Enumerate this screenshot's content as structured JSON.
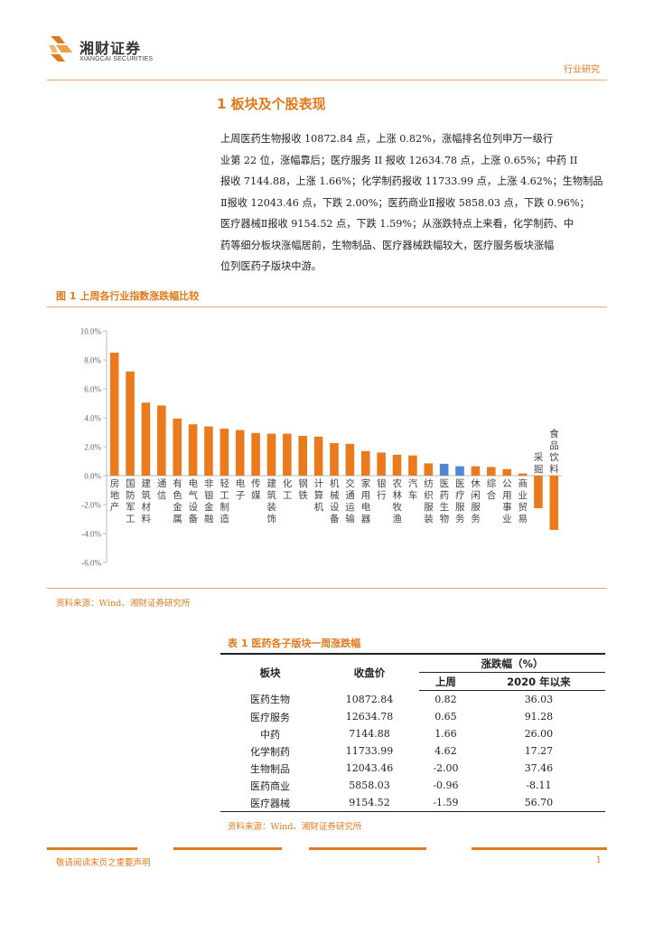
{
  "header": {
    "brand_cn": "湘财证券",
    "brand_en": "XIANGCAI SECURITIES",
    "doc_type": "行业研究",
    "accent": "#e07a1e"
  },
  "section": {
    "title": "1 板块及个股表现",
    "paragraph_lines": [
      "上周医药生物报收 10872.84 点，上涨 0.82%，涨幅排名位列申万一级行",
      "业第 22 位，涨幅靠后；医疗服务 II 报收 12634.78 点，上涨 0.65%；中药 II",
      "报收 7144.88，上涨 1.66%；化学制药报收 11733.99 点，上涨 4.62%；生物制品",
      "Ⅱ报收 12043.46 点，下跌 2.00%；医药商业Ⅱ报收 5858.03 点，下跌 0.96%；",
      "医疗器械Ⅱ报收 9154.52 点，下跌 1.59%；从涨跌特点上来看，化学制药、中",
      "药等细分板块涨幅居前，生物制品、医疗器械跌幅较大，医疗服务板块涨幅",
      "位列医药子版块中游。"
    ]
  },
  "figure": {
    "title": "图 1 上周各行业指数涨跌幅比较",
    "source": "资料来源：Wind、湘财证券研究所"
  },
  "chart_data": {
    "type": "bar",
    "title": "",
    "xlabel": "",
    "ylabel": "",
    "ylim": [
      -6,
      10
    ],
    "yticks": [
      "10.0%",
      "8.0%",
      "6.0%",
      "4.0%",
      "2.0%",
      "0.0%",
      "-2.0%",
      "-4.0%",
      "-6.0%"
    ],
    "categories": [
      "房地产",
      "国防军工",
      "建筑材料",
      "通信",
      "有色金属",
      "电气设备",
      "非银金融",
      "轻工制造",
      "电子",
      "传媒",
      "建筑装饰",
      "化工",
      "钢铁",
      "计算机",
      "机械设备",
      "交通运输",
      "家用电器",
      "银行",
      "农林牧渔",
      "汽车",
      "纺织服装",
      "医药生物",
      "医疗服务",
      "休闲服务",
      "综合",
      "公用事业",
      "商业贸易",
      "采掘",
      "食品饮料"
    ],
    "values": [
      8.5,
      7.2,
      5.05,
      4.85,
      3.95,
      3.55,
      3.4,
      3.25,
      3.15,
      2.95,
      2.9,
      2.9,
      2.75,
      2.7,
      2.25,
      2.2,
      1.7,
      1.6,
      1.45,
      1.4,
      0.85,
      0.82,
      0.65,
      0.65,
      0.6,
      0.45,
      0.15,
      -2.25,
      -3.75
    ],
    "colors": {
      "default": "#ea7a1c",
      "highlight": "#4f86d6"
    },
    "highlight": [
      "医药生物",
      "医疗服务"
    ],
    "grid": false,
    "legend": "none"
  },
  "table": {
    "title": "表 1  医药各子版块一周涨跌幅",
    "headers": {
      "sector": "板块",
      "close": "收盘价",
      "change": "涨跌幅（%）",
      "week": "上周",
      "ytd": "2020 年以来"
    },
    "rows": [
      [
        "医药生物",
        "10872.84",
        "0.82",
        "36.03"
      ],
      [
        "医疗服务",
        "12634.78",
        "0.65",
        "91.28"
      ],
      [
        "中药",
        "7144.88",
        "1.66",
        "26.00"
      ],
      [
        "化学制药",
        "11733.99",
        "4.62",
        "17.27"
      ],
      [
        "生物制品",
        "12043.46",
        "-2.00",
        "37.46"
      ],
      [
        "医药商业",
        "5858.03",
        "-0.96",
        "-8.11"
      ],
      [
        "医疗器械",
        "9154.52",
        "-1.59",
        "56.70"
      ]
    ],
    "source": "资料来源：Wind、湘财证券研究所"
  },
  "footer": {
    "disclaimer": "敬请阅读末页之重要声明",
    "page": "1"
  }
}
